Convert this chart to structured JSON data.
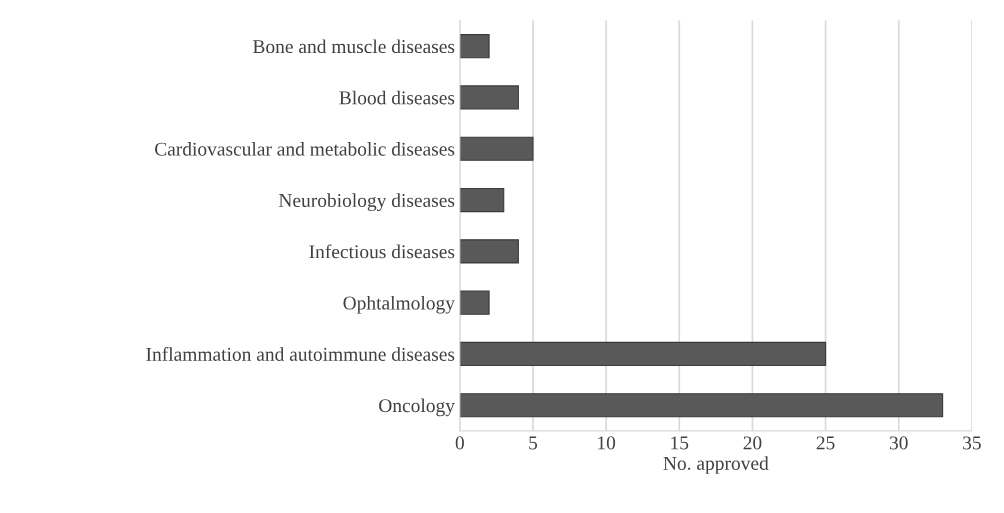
{
  "chart_data": {
    "type": "bar",
    "orientation": "horizontal",
    "xlabel": "No. approved",
    "categories": [
      "Bone and muscle diseases",
      "Blood diseases",
      "Cardiovascular and metabolic diseases",
      "Neurobiology diseases",
      "Infectious diseases",
      "Ophtalmology",
      "Inflammation and autoimmune diseases",
      "Oncology"
    ],
    "values": [
      2,
      4,
      5,
      3,
      4,
      2,
      25,
      33
    ],
    "color": "#595959",
    "xlim": [
      0,
      35
    ],
    "xticks": [
      0,
      5,
      10,
      15,
      20,
      25,
      30,
      35
    ],
    "grid": "x",
    "legend": false
  }
}
